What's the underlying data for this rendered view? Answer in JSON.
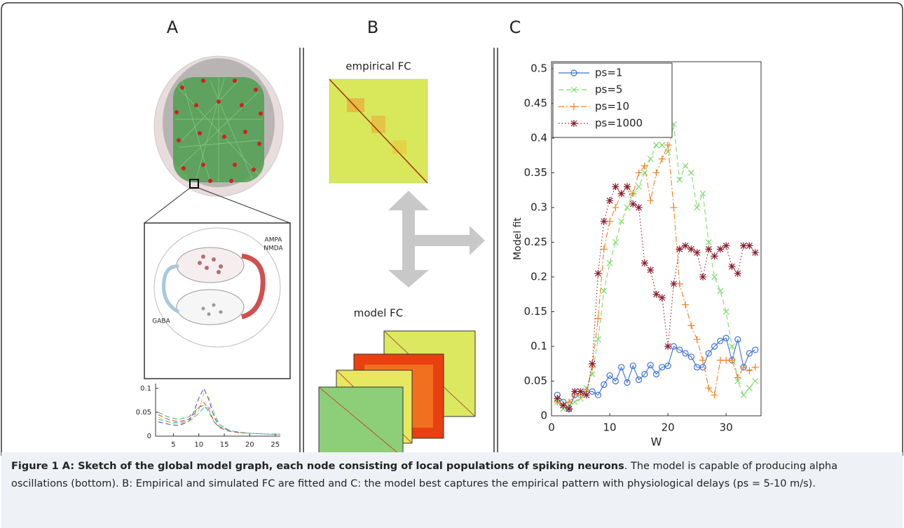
{
  "panel_labels": [
    "A",
    "B",
    "C"
  ],
  "synapse_labels": [
    "AMPA",
    "NMDA",
    "GABA"
  ],
  "fc_labels": {
    "empirical": "empirical FC",
    "model": "model FC"
  },
  "caption": {
    "bold": "Figure 1 A: Sketch of the global model graph, each node consisting of local populations of spiking neurons",
    "text": ". The model is capable of producing alpha oscillations (bottom). B: Empirical and simulated FC are fitted and C: the model best captures the empirical pattern with physiological delays (ps = 5-10 m/s)."
  },
  "chart_data": [
    {
      "type": "line",
      "xlim": [
        1.5,
        26
      ],
      "ylim": [
        0,
        0.11
      ],
      "xticks": [
        5,
        10,
        15,
        20,
        25
      ],
      "yticks": [
        0,
        0.05,
        0.1
      ],
      "x": [
        2,
        4,
        6,
        8,
        9,
        10,
        11,
        12,
        13,
        14,
        16,
        18,
        20,
        22,
        24,
        26
      ],
      "series": [
        {
          "color": "#3030d0",
          "values": [
            0.03,
            0.025,
            0.022,
            0.03,
            0.05,
            0.08,
            0.1,
            0.075,
            0.04,
            0.02,
            0.012,
            0.008,
            0.006,
            0.005,
            0.004,
            0.004
          ]
        },
        {
          "color": "#d03030",
          "values": [
            0.045,
            0.035,
            0.03,
            0.035,
            0.045,
            0.06,
            0.07,
            0.055,
            0.03,
            0.018,
            0.01,
            0.007,
            0.006,
            0.005,
            0.004,
            0.004
          ]
        },
        {
          "color": "#30a030",
          "values": [
            0.05,
            0.04,
            0.035,
            0.04,
            0.05,
            0.06,
            0.065,
            0.05,
            0.03,
            0.02,
            0.012,
            0.008,
            0.006,
            0.005,
            0.004,
            0.004
          ]
        },
        {
          "color": "#d0c020",
          "values": [
            0.04,
            0.03,
            0.025,
            0.03,
            0.04,
            0.055,
            0.09,
            0.08,
            0.05,
            0.025,
            0.012,
            0.008,
            0.006,
            0.005,
            0.004,
            0.004
          ]
        },
        {
          "color": "#20b0c0",
          "values": [
            0.035,
            0.03,
            0.028,
            0.032,
            0.038,
            0.048,
            0.06,
            0.06,
            0.045,
            0.025,
            0.012,
            0.008,
            0.006,
            0.005,
            0.004,
            0.004
          ]
        }
      ]
    },
    {
      "type": "line",
      "xlabel": "W",
      "ylabel": "Model fit",
      "xlim": [
        0,
        36
      ],
      "ylim": [
        0,
        0.51
      ],
      "xticks": [
        0,
        10,
        20,
        30
      ],
      "yticks": [
        0,
        0.05,
        0.1,
        0.15,
        0.2,
        0.25,
        0.3,
        0.35,
        0.4,
        0.45,
        0.5
      ],
      "legend": "upper left",
      "x": [
        1,
        2,
        3,
        4,
        5,
        6,
        7,
        8,
        9,
        10,
        11,
        12,
        13,
        14,
        15,
        16,
        17,
        18,
        19,
        20,
        21,
        22,
        23,
        24,
        25,
        26,
        27,
        28,
        29,
        30,
        31,
        32,
        33,
        34,
        35
      ],
      "series": [
        {
          "name": "ps=1",
          "color": "#3a6fd8",
          "linestyle": "solid",
          "marker": "o",
          "values": [
            0.03,
            0.02,
            0.01,
            0.03,
            0.03,
            0.035,
            0.035,
            0.03,
            0.045,
            0.058,
            0.05,
            0.07,
            0.048,
            0.072,
            0.052,
            0.06,
            0.073,
            0.06,
            0.07,
            0.072,
            0.1,
            0.095,
            0.09,
            0.085,
            0.07,
            0.07,
            0.09,
            0.1,
            0.108,
            0.112,
            0.08,
            0.11,
            0.07,
            0.09,
            0.095
          ]
        },
        {
          "name": "ps=5",
          "color": "#7ddc6a",
          "linestyle": "dashed",
          "marker": "x",
          "values": [
            0.02,
            0.01,
            0.015,
            0.02,
            0.025,
            0.04,
            0.06,
            0.11,
            0.18,
            0.22,
            0.25,
            0.28,
            0.3,
            0.32,
            0.33,
            0.35,
            0.37,
            0.39,
            0.39,
            0.38,
            0.42,
            0.34,
            0.36,
            0.35,
            0.3,
            0.32,
            0.25,
            0.2,
            0.18,
            0.15,
            0.1,
            0.05,
            0.03,
            0.04,
            0.05
          ]
        },
        {
          "name": "ps=10",
          "color": "#f08020",
          "linestyle": "dashdot",
          "marker": "+",
          "values": [
            0.02,
            0.015,
            0.02,
            0.03,
            0.03,
            0.035,
            0.07,
            0.14,
            0.24,
            0.28,
            0.3,
            0.32,
            0.33,
            0.32,
            0.35,
            0.36,
            0.31,
            0.35,
            0.37,
            0.39,
            0.3,
            0.19,
            0.16,
            0.13,
            0.11,
            0.08,
            0.04,
            0.03,
            0.08,
            0.08,
            0.08,
            0.055,
            0.07,
            0.065,
            0.07
          ]
        },
        {
          "name": "ps=1000",
          "color": "#8a1a2a",
          "linestyle": "dotted",
          "marker": "*",
          "values": [
            0.025,
            0.015,
            0.01,
            0.035,
            0.035,
            0.03,
            0.075,
            0.205,
            0.28,
            0.31,
            0.33,
            0.32,
            0.33,
            0.305,
            0.3,
            0.22,
            0.21,
            0.175,
            0.17,
            0.1,
            0.19,
            0.24,
            0.245,
            0.24,
            0.235,
            0.2,
            0.24,
            0.23,
            0.24,
            0.245,
            0.215,
            0.205,
            0.245,
            0.245,
            0.235
          ]
        }
      ]
    }
  ]
}
